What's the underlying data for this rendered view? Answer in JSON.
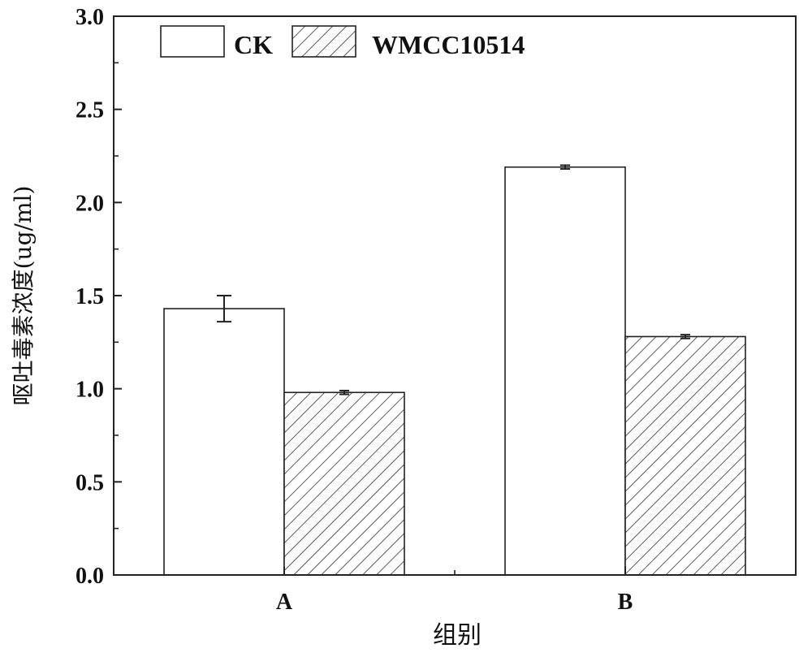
{
  "chart_data": {
    "type": "bar",
    "categories": [
      "A",
      "B"
    ],
    "series": [
      {
        "name": "CK",
        "values": [
          1.43,
          2.19
        ],
        "errors": [
          0.07,
          0.01
        ],
        "fill": "white"
      },
      {
        "name": "WMCC10514",
        "values": [
          0.98,
          1.28
        ],
        "errors": [
          0.01,
          0.01
        ],
        "fill": "hatch"
      }
    ],
    "xlabel": "组别",
    "ylabel": "呕吐毒素浓度(ug/ml)",
    "ylim": [
      0,
      3.0
    ],
    "yticks": [
      "0.0",
      "0.5",
      "1.0",
      "1.5",
      "2.0",
      "2.5",
      "3.0"
    ],
    "legend_position": "top-left",
    "grid": false,
    "colors": {
      "stroke": "#222222",
      "background": "#ffffff"
    }
  }
}
